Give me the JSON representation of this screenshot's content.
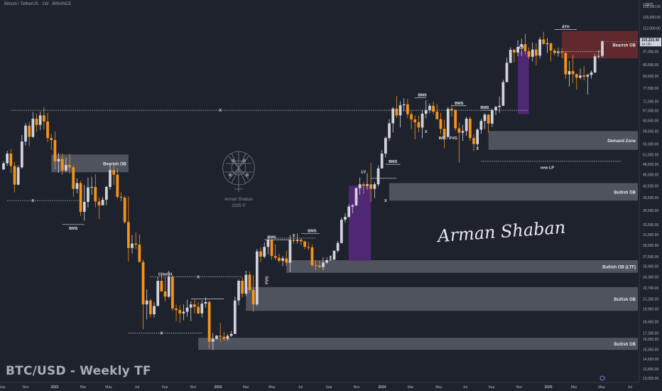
{
  "header": {
    "symbol_title": "Bitcoin / TetherUS · 1W · BINANCE",
    "currency_label": "USDT"
  },
  "footer": {
    "title": "BTC/USD - Weekly TF"
  },
  "branding": {
    "logo_name": "Arman Shaban",
    "logo_year": "2025 ©",
    "signature": "Arman Shaban"
  },
  "colors": {
    "background": "#1e222d",
    "bull_candle": "#d1d4dc",
    "bear_candle": "#f7931a",
    "ob_zone": "#787b86",
    "bearish_ob_zone": "#6d2a2f",
    "lv_zone": "#5b2a86",
    "text": "#e5e7eb"
  },
  "chart_data": {
    "type": "candlestick",
    "title": "BTC/USD - Weekly TF",
    "interval": "1W",
    "x_tick_labels": [
      "Sep",
      "Nov",
      "2022",
      "Mar",
      "May",
      "Jul",
      "Sep",
      "Nov",
      "2023",
      "Mar",
      "May",
      "Jul",
      "Sep",
      "Nov",
      "2024",
      "Mar",
      "May",
      "Jul",
      "Sep",
      "Nov",
      "2025",
      "Mar",
      "May",
      "Jul"
    ],
    "y_tick_labels": [
      "128,000.00",
      "120,000.00",
      "112,000.00",
      "104,000.00",
      "97,000.00",
      "89,500.00",
      "83,500.00",
      "77,500.00",
      "71,500.00",
      "67,500.00",
      "63,500.00",
      "59,500.00",
      "55,000.00",
      "51,500.00",
      "48,500.00",
      "45,500.00",
      "42,500.00",
      "39,500.00",
      "36,500.00",
      "33,500.00",
      "31,500.00",
      "29,500.00",
      "27,500.00",
      "25,900.00",
      "24,300.00",
      "22,700.00",
      "21,200.00",
      "19,950.00",
      "18,450.00",
      "17,200.00",
      "16,550.00",
      "15,550.00",
      "14,650.00",
      "13,800.00",
      "13,025.00"
    ],
    "ylim": [
      13025,
      128000
    ],
    "scale": "log",
    "current_price_label": "103,223.40",
    "countdown_label": "2d 13h",
    "candles": [
      [
        47000,
        49500,
        46800,
        48800
      ],
      [
        48800,
        52700,
        48000,
        51800
      ],
      [
        51800,
        53300,
        46000,
        48000
      ],
      [
        48000,
        49200,
        40800,
        42800
      ],
      [
        42800,
        48200,
        42600,
        47600
      ],
      [
        47600,
        58000,
        47200,
        55800
      ],
      [
        55800,
        62500,
        54500,
        61500
      ],
      [
        61500,
        63000,
        54200,
        57400
      ],
      [
        57400,
        66900,
        57000,
        64200
      ],
      [
        64200,
        66200,
        59200,
        61800
      ],
      [
        61800,
        67000,
        59800,
        65500
      ],
      [
        65500,
        69000,
        60000,
        63100
      ],
      [
        63100,
        66600,
        55600,
        57000
      ],
      [
        57000,
        58500,
        53000,
        56300
      ],
      [
        56300,
        59400,
        47000,
        49400
      ],
      [
        49400,
        52000,
        46000,
        50100
      ],
      [
        50100,
        51900,
        45500,
        46700
      ],
      [
        46700,
        50500,
        46200,
        48300
      ],
      [
        48300,
        51800,
        45800,
        47600
      ],
      [
        47600,
        48200,
        39700,
        41700
      ],
      [
        41700,
        44500,
        40600,
        43200
      ],
      [
        43200,
        43800,
        35300,
        36200
      ],
      [
        36200,
        42700,
        34300,
        38500
      ],
      [
        38500,
        44700,
        37200,
        42100
      ],
      [
        42100,
        44900,
        40200,
        42200
      ],
      [
        42200,
        45600,
        37200,
        38600
      ],
      [
        38600,
        39600,
        34600,
        37700
      ],
      [
        37700,
        39700,
        38100,
        39000
      ],
      [
        39000,
        42500,
        37700,
        42200
      ],
      [
        42200,
        48200,
        41500,
        46800
      ],
      [
        46800,
        48200,
        42700,
        45500
      ],
      [
        45500,
        47400,
        39200,
        39700
      ],
      [
        39700,
        40800,
        38600,
        39500
      ],
      [
        39500,
        40000,
        33700,
        34000
      ],
      [
        34000,
        39800,
        26700,
        29000
      ],
      [
        29000,
        31400,
        28000,
        29800
      ],
      [
        29800,
        31900,
        28800,
        29600
      ],
      [
        29600,
        31500,
        26600,
        26600
      ],
      [
        26600,
        27000,
        17600,
        20500
      ],
      [
        20500,
        22500,
        18700,
        21000
      ],
      [
        21000,
        21200,
        18900,
        19300
      ],
      [
        19300,
        20800,
        18900,
        20300
      ],
      [
        20300,
        24300,
        20700,
        23700
      ],
      [
        23700,
        24500,
        22400,
        22200
      ],
      [
        22200,
        24200,
        20900,
        21500
      ],
      [
        21500,
        25200,
        21300,
        24300
      ],
      [
        24300,
        24500,
        19700,
        20000
      ],
      [
        20000,
        20500,
        18500,
        19800
      ],
      [
        19800,
        20400,
        18300,
        19400
      ],
      [
        19400,
        20500,
        18600,
        19600
      ],
      [
        19600,
        21100,
        19000,
        20100
      ],
      [
        20100,
        20900,
        18500,
        20500
      ],
      [
        20500,
        21100,
        19400,
        20200
      ],
      [
        20200,
        20800,
        19300,
        19400
      ],
      [
        19400,
        21000,
        18900,
        20600
      ],
      [
        20600,
        21400,
        20100,
        20800
      ],
      [
        20800,
        21000,
        15600,
        16300
      ],
      [
        16300,
        17200,
        15500,
        16600
      ],
      [
        16600,
        17000,
        16500,
        16900
      ],
      [
        16900,
        18300,
        16300,
        16800
      ],
      [
        16800,
        17300,
        16400,
        16600
      ],
      [
        16600,
        17100,
        16400,
        16900
      ],
      [
        16900,
        17400,
        16800,
        17100
      ],
      [
        17100,
        21500,
        17100,
        21000
      ],
      [
        21000,
        23900,
        20400,
        23700
      ],
      [
        23700,
        24200,
        21400,
        21900
      ],
      [
        21900,
        25200,
        21600,
        24600
      ],
      [
        24600,
        25100,
        22000,
        22400
      ],
      [
        22400,
        24500,
        19600,
        20500
      ],
      [
        20500,
        28800,
        20300,
        28400
      ],
      [
        28400,
        29100,
        26600,
        27500
      ],
      [
        27500,
        30000,
        27200,
        29200
      ],
      [
        29200,
        31000,
        27900,
        30500
      ],
      [
        30500,
        30300,
        27000,
        27600
      ],
      [
        27600,
        29700,
        26900,
        27300
      ],
      [
        27300,
        28000,
        26500,
        26800
      ],
      [
        26800,
        27600,
        25900,
        27200
      ],
      [
        27200,
        28500,
        26000,
        26500
      ],
      [
        26500,
        31400,
        25000,
        30500
      ],
      [
        30500,
        31200,
        29800,
        30300
      ],
      [
        30300,
        31700,
        29800,
        30500
      ],
      [
        30500,
        30800,
        29500,
        30200
      ],
      [
        30200,
        30300,
        28800,
        29200
      ],
      [
        29200,
        30100,
        28600,
        29100
      ],
      [
        29100,
        29600,
        25800,
        26100
      ],
      [
        26100,
        26900,
        25300,
        26000
      ],
      [
        26000,
        26800,
        25600,
        25800
      ],
      [
        25800,
        27400,
        25300,
        26500
      ],
      [
        26500,
        27400,
        26300,
        26900
      ],
      [
        26900,
        27700,
        26800,
        27000
      ],
      [
        27000,
        28600,
        26900,
        28500
      ],
      [
        28500,
        30300,
        28200,
        29900
      ],
      [
        29900,
        35000,
        29800,
        34500
      ],
      [
        34500,
        35900,
        33900,
        35100
      ],
      [
        35100,
        37900,
        34900,
        37400
      ],
      [
        37400,
        38000,
        35900,
        37700
      ],
      [
        37700,
        42000,
        37500,
        41900
      ],
      [
        41900,
        44700,
        40200,
        42900
      ],
      [
        42900,
        43400,
        40500,
        42500
      ],
      [
        42500,
        45900,
        41500,
        42900
      ],
      [
        42900,
        48900,
        38500,
        41700
      ],
      [
        41700,
        43500,
        39400,
        42900
      ],
      [
        42900,
        48200,
        42300,
        47300
      ],
      [
        47300,
        52900,
        47200,
        51800
      ],
      [
        51800,
        57500,
        50600,
        57000
      ],
      [
        57000,
        64000,
        56000,
        62400
      ],
      [
        62400,
        69000,
        59000,
        68300
      ],
      [
        68300,
        73800,
        64500,
        65500
      ],
      [
        65500,
        71500,
        60800,
        69700
      ],
      [
        69700,
        72800,
        67100,
        70100
      ],
      [
        70100,
        72500,
        64500,
        66000
      ],
      [
        66000,
        67200,
        60200,
        63900
      ],
      [
        63900,
        65400,
        56500,
        62800
      ],
      [
        62800,
        65500,
        59000,
        60800
      ],
      [
        60800,
        67500,
        56900,
        66200
      ],
      [
        66200,
        71900,
        64300,
        67700
      ],
      [
        67700,
        70500,
        66400,
        69500
      ],
      [
        69500,
        71300,
        66000,
        67000
      ],
      [
        67000,
        70200,
        64000,
        64000
      ],
      [
        64000,
        66500,
        58400,
        60300
      ],
      [
        60300,
        63800,
        53500,
        57400
      ],
      [
        57400,
        69000,
        57100,
        68200
      ],
      [
        68200,
        70000,
        65000,
        67600
      ],
      [
        67600,
        68300,
        59600,
        60500
      ],
      [
        60500,
        62800,
        49000,
        58900
      ],
      [
        58900,
        61800,
        56000,
        59500
      ],
      [
        59500,
        65000,
        57800,
        64200
      ],
      [
        64200,
        65000,
        56000,
        57000
      ],
      [
        57000,
        58500,
        52500,
        54900
      ],
      [
        54900,
        60600,
        53600,
        60000
      ],
      [
        60000,
        64100,
        58500,
        63300
      ],
      [
        63300,
        66500,
        60200,
        65800
      ],
      [
        65800,
        66100,
        58900,
        62300
      ],
      [
        62300,
        68400,
        61000,
        67600
      ],
      [
        67600,
        69500,
        65600,
        69000
      ],
      [
        69000,
        73600,
        66600,
        69500
      ],
      [
        69500,
        81500,
        69400,
        80400
      ],
      [
        80400,
        93400,
        80300,
        90500
      ],
      [
        90500,
        99500,
        90200,
        98000
      ],
      [
        98000,
        98700,
        90700,
        96400
      ],
      [
        96400,
        104000,
        94200,
        99800
      ],
      [
        99800,
        105000,
        94400,
        101500
      ],
      [
        101500,
        108200,
        95300,
        97200
      ],
      [
        97200,
        99500,
        92600,
        93900
      ],
      [
        93900,
        102500,
        91200,
        98200
      ],
      [
        98200,
        102000,
        89200,
        94600
      ],
      [
        94600,
        106000,
        92900,
        104500
      ],
      [
        104500,
        109500,
        101000,
        101700
      ],
      [
        101700,
        105400,
        96200,
        102000
      ],
      [
        102000,
        102500,
        91200,
        97600
      ],
      [
        97600,
        98900,
        94700,
        96100
      ],
      [
        96100,
        99400,
        94000,
        96600
      ],
      [
        96600,
        99000,
        93200,
        96200
      ],
      [
        96200,
        96500,
        82000,
        84300
      ],
      [
        84300,
        91500,
        78200,
        86000
      ],
      [
        86000,
        95000,
        80000,
        84400
      ],
      [
        84400,
        84800,
        76800,
        82600
      ],
      [
        82600,
        87400,
        81800,
        83700
      ],
      [
        83700,
        88700,
        81200,
        83100
      ],
      [
        83100,
        84700,
        74500,
        84000
      ],
      [
        84000,
        86400,
        82000,
        85300
      ],
      [
        85300,
        95700,
        84900,
        94200
      ],
      [
        94200,
        97800,
        92800,
        94400
      ],
      [
        94400,
        104000,
        93400,
        103200
      ]
    ],
    "zones": [
      {
        "label": "Bearish OB",
        "y_low": 46200,
        "y_high": 51500
      },
      {
        "label": "Bearish OB",
        "y_low": 93000,
        "y_high": 110000
      },
      {
        "label": "Demand Zone",
        "y_low": 53000,
        "y_high": 59500
      },
      {
        "label": "Bullish OB",
        "y_low": 38800,
        "y_high": 43200
      },
      {
        "label": "Bullish OB (LTF)",
        "y_low": 24900,
        "y_high": 26900
      },
      {
        "label": "Bullish OB",
        "y_low": 19700,
        "y_high": 22800
      },
      {
        "label": "Bullish OB",
        "y_low": 15500,
        "y_high": 16700
      }
    ],
    "annotations": [
      "BMS",
      "CHoCH",
      "FVG",
      "BMS",
      "BMS",
      "LV",
      "BMS",
      "BMS",
      "IMB - FVG",
      "BMS",
      "BMS",
      "LV",
      "ATH",
      "new LP",
      "X"
    ]
  }
}
